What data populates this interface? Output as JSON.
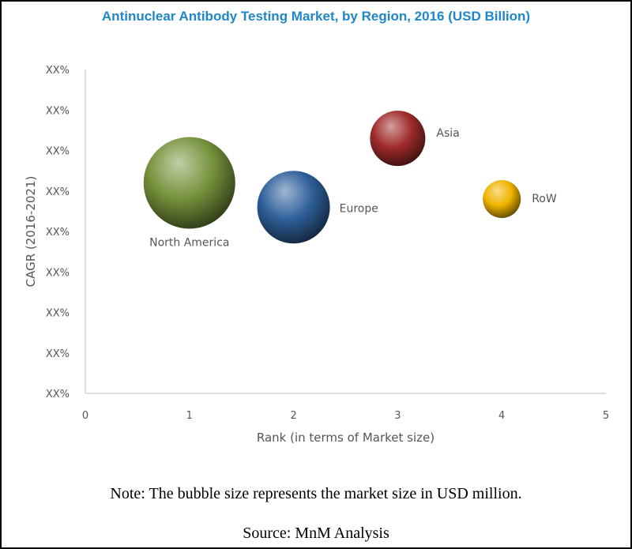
{
  "chart_data": {
    "type": "bubble",
    "title": "Antinuclear Antibody Testing Market, by Region, 2016 (USD Billion)",
    "xlabel": "Rank (in terms of Market size)",
    "ylabel": "CAGR (2016-2021)",
    "xlim": [
      0,
      5
    ],
    "x_ticks": [
      "0",
      "1",
      "2",
      "3",
      "4",
      "5"
    ],
    "y_tick_labels": [
      "XX%",
      "XX%",
      "XX%",
      "XX%",
      "XX%",
      "XX%",
      "XX%",
      "XX%",
      "XX%"
    ],
    "ylim": [
      0,
      8
    ],
    "grid": false,
    "legend": "none",
    "points": [
      {
        "label": "North America",
        "x": 1,
        "y": 5.2,
        "size": 58,
        "color": "#76923c"
      },
      {
        "label": "Europe",
        "x": 2,
        "y": 4.6,
        "size": 46,
        "color": "#2e5f9a"
      },
      {
        "label": "Asia",
        "x": 3,
        "y": 6.3,
        "size": 35,
        "color": "#9e2a2a"
      },
      {
        "label": "RoW",
        "x": 4,
        "y": 4.8,
        "size": 24,
        "color": "#f0b400"
      }
    ]
  },
  "note": "Note: The bubble size represents the market size in USD million.",
  "source": "Source: MnM Analysis"
}
